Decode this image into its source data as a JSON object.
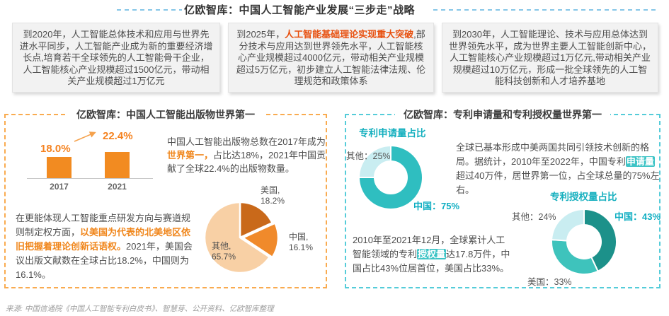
{
  "header": {
    "title": "亿欧智库：中国人工智能产业发展“三步走”战略"
  },
  "strategy_boxes": [
    {
      "name": "2020",
      "segments": [
        {
          "t": "到2020年，人工智能总体技术和应用与世界先进水平同步，人工智能产业成为新的重要经济增长点,培育若干全球领先的人工智能骨干企业，人工智能核心产业规模超过1500亿元，带动相关产业规模超过1万亿元"
        }
      ]
    },
    {
      "name": "2025",
      "segments": [
        {
          "t": "到2025年，"
        },
        {
          "t": "人工智能基础理论实现重大突破",
          "cls": "red"
        },
        {
          "t": ",部分技术与应用达到世界领先水平，人工智能核心产业规模超过4000亿元，带动相关产业规模超过5万亿元，初步建立人工智能法律法规、伦理规范和政策体系"
        }
      ]
    },
    {
      "name": "2030",
      "segments": [
        {
          "t": "到2030年，人工智能理论、技术与应用总体达到世界领先水平，成为世界主要人工智能创新中心，人工智能核心产业规模超过1万亿元,带动相关产业规模超过10万亿元，形成一批全球领先的人工智能科技创新和人才培养基地"
        }
      ]
    }
  ],
  "left_panel": {
    "title": "亿欧智库：中国人工智能出版物世界第一",
    "publication_note_segments": [
      {
        "t": "中国人工智能出版物总数在2017年成为"
      },
      {
        "t": "世界第一，",
        "cls": "orange"
      },
      {
        "t": "占比达18%，2021年中国贡献了全球22.4%的出版物数量。"
      }
    ],
    "north_america_note_segments": [
      {
        "t": "在更能体现人工智能重点研发方向与赛道规则制定权方面，"
      },
      {
        "t": "以美国为代表的北美地区依旧把握着理论创新话语权。",
        "cls": "orange"
      },
      {
        "t": "2021年，美国会议出版文献数在全球占比18.2%，中国则为16.1%。"
      }
    ]
  },
  "right_panel": {
    "title": "亿欧智库：专利申请量和专利授权量世界第一",
    "applications_note_segments": [
      {
        "t": "全球已基本形成中美两国共同引领技术创新的格局。据统计，2010年至2022年，中国专利"
      },
      {
        "t": "申请量",
        "cls": "tealbg"
      },
      {
        "t": "超过40万件，居世界第一位，占全球总量的75%左右。"
      }
    ],
    "grants_note_segments": [
      {
        "t": "2010年至2021年12月，全球累计人工智能领域的专利"
      },
      {
        "t": "授权量",
        "cls": "tealbg"
      },
      {
        "t": "达17.8万件，中国占比43%位居首位，美国占比33%。"
      }
    ]
  },
  "footer": {
    "source": "来源: 中国信通院《中国人工智能专利白皮书》、智慧芽、公开资料、亿欧智库整理"
  },
  "theme": {
    "header_dash_blue": "#85C6E8",
    "panel_dash_orange": "#F9AB50",
    "panel_dash_teal": "#55CCD9",
    "accent_orange": "#F5821F",
    "accent_red": "#E8500F",
    "accent_teal": "#14AFBE"
  },
  "chart_data": [
    {
      "id": "cn-ai-publications-share",
      "type": "bar",
      "categories": [
        "2017",
        "2021"
      ],
      "values": [
        18.0,
        22.4
      ],
      "unit": "%",
      "bar_color": "#F28B21",
      "value_label_color": "#F5821F",
      "ylim": [
        0,
        25
      ],
      "grid": false,
      "annotation": "growth-arrow"
    },
    {
      "id": "ai-publications-by-region-2021",
      "type": "pie",
      "start_angle_deg": 0,
      "clockwise": true,
      "labels_visible": true,
      "slices": [
        {
          "label": "美国",
          "value": 18.2,
          "color": "#C9691A"
        },
        {
          "label": "中国",
          "value": 16.1,
          "color": "#F08A2B"
        },
        {
          "label": "其他",
          "value": 65.7,
          "color": "#F8D0A5"
        }
      ]
    },
    {
      "id": "patent-applications-share",
      "type": "pie",
      "subtype": "donut",
      "title": "专利申请量占比",
      "inner_ratio": 0.51,
      "start_angle_deg": 0,
      "clockwise": true,
      "slices": [
        {
          "label": "中国",
          "value": 75,
          "color": "#2FBEC0"
        },
        {
          "label": "其他",
          "value": 25,
          "color": "#C9EDF1"
        }
      ]
    },
    {
      "id": "patent-grants-share",
      "type": "pie",
      "subtype": "donut",
      "title": "专利授权量占比",
      "inner_ratio": 0.52,
      "start_angle_deg": 0,
      "clockwise": true,
      "slices": [
        {
          "label": "中国",
          "value": 43,
          "color": "#1C918A"
        },
        {
          "label": "美国",
          "value": 33,
          "color": "#3EC3BC"
        },
        {
          "label": "其他",
          "value": 24,
          "color": "#C9EDF1"
        }
      ]
    }
  ]
}
